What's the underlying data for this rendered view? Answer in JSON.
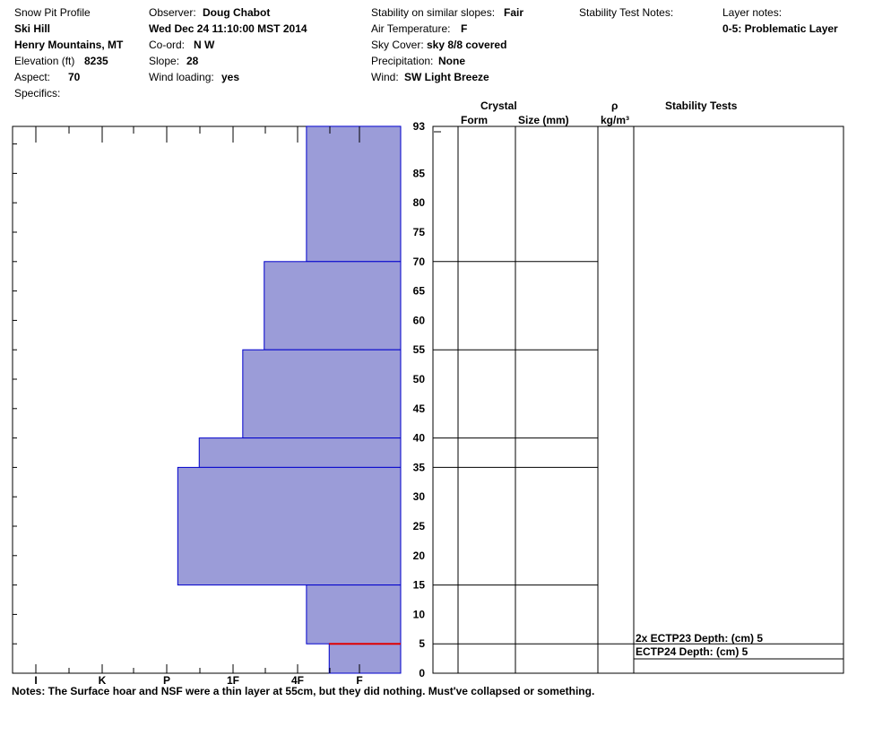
{
  "header": {
    "title": "Snow Pit Profile",
    "location_name": "Ski Hill",
    "range": "Henry Mountains, MT",
    "elevation_label": "Elevation (ft)",
    "elevation_value": "8235",
    "aspect_label": "Aspect:",
    "aspect_value": "70",
    "specifics_label": "Specifics:",
    "observer_label": "Observer:",
    "observer_value": "Doug Chabot",
    "datetime": "Wed Dec 24 11:10:00 MST 2014",
    "coord_label": "Co-ord:",
    "coord_value": "N  W",
    "slope_label": "Slope:",
    "slope_value": "28",
    "wind_loading_label": "Wind loading:",
    "wind_loading_value": "yes",
    "stability_label": "Stability on similar slopes:",
    "stability_value": "Fair",
    "air_temp_label": "Air Temperature:",
    "air_temp_value": "F",
    "sky_label": "Sky Cover:",
    "sky_value": "sky 8/8 covered",
    "precip_label": "Precipitation:",
    "precip_value": "None",
    "wind_label": "Wind:",
    "wind_value": "SW Light Breeze",
    "stability_notes_label": "Stability Test Notes:",
    "layer_notes_label": "Layer notes:",
    "layer_notes_value": "0-5: Problematic Layer"
  },
  "columns": {
    "crystal": "Crystal",
    "form": "Form",
    "size": "Size (mm)",
    "rho": "ρ",
    "density_unit": "kg/m³",
    "stability_tests": "Stability Tests"
  },
  "chart_data": {
    "type": "bar",
    "orientation": "horizontal",
    "hardness_scale": [
      "I",
      "K",
      "P",
      "1F",
      "4F",
      "F"
    ],
    "depth_range": [
      0,
      93
    ],
    "depth_ticks": [
      0,
      5,
      10,
      15,
      20,
      25,
      30,
      35,
      40,
      45,
      50,
      55,
      60,
      65,
      70,
      75,
      80,
      85,
      93
    ],
    "boundaries": [
      5,
      15,
      35,
      40,
      55,
      70
    ],
    "layers": [
      {
        "top": 93,
        "bottom": 70,
        "hardness_index": 1.45
      },
      {
        "top": 70,
        "bottom": 55,
        "hardness_index": 2.1
      },
      {
        "top": 55,
        "bottom": 40,
        "hardness_index": 2.43
      },
      {
        "top": 40,
        "bottom": 35,
        "hardness_index": 3.1
      },
      {
        "top": 35,
        "bottom": 15,
        "hardness_index": 3.43
      },
      {
        "top": 15,
        "bottom": 5,
        "hardness_index": 1.45
      },
      {
        "top": 5,
        "bottom": 0,
        "hardness_index": 1.1
      }
    ],
    "problematic_layer_depth": 5,
    "stability_tests": [
      {
        "label": "2x ECTP23   Depth: (cm) 5"
      },
      {
        "label": "ECTP24   Depth: (cm) 5"
      }
    ],
    "fill_color": "#9b9cd8",
    "edge_color": "#0000cc",
    "highlight_color": "#e00000"
  },
  "notes": "Notes:  The Surface hoar and NSF were a thin layer at 55cm, but they did nothing.  Must've collapsed or something."
}
